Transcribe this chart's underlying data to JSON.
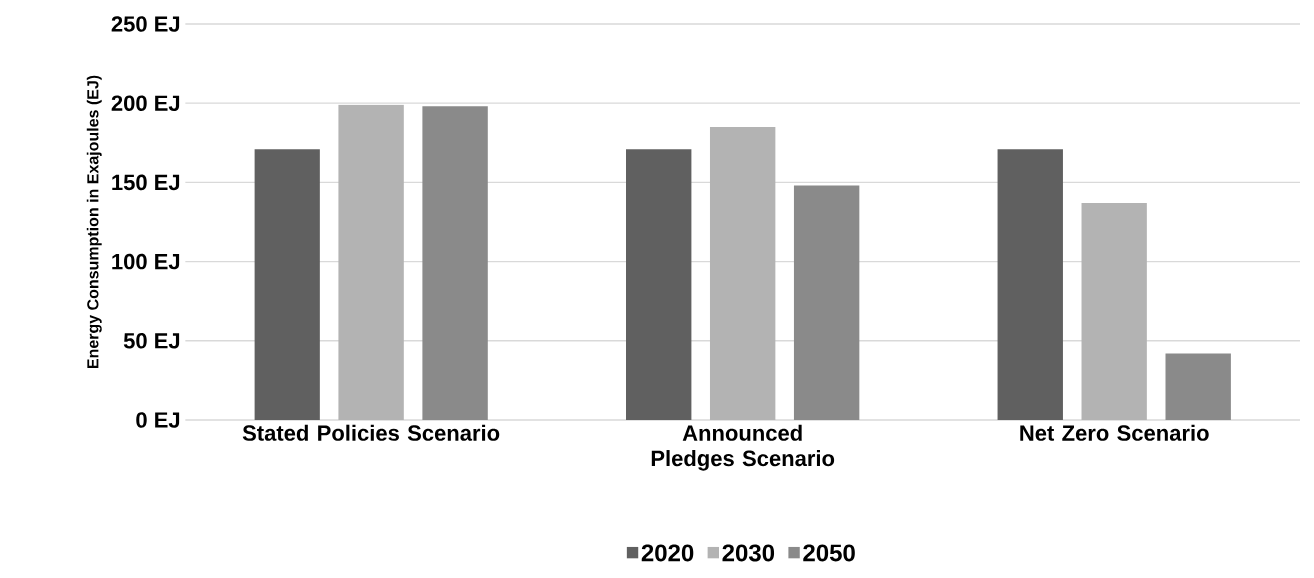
{
  "chart_data": {
    "type": "bar",
    "ylabel": "Energy Consumption in Exajoules (EJ)",
    "categories": [
      "Stated Policies Scenario",
      "Announced Pledges Scenario",
      "Net Zero Scenario"
    ],
    "series": [
      {
        "name": "2020",
        "color": "#606060",
        "values": [
          171,
          171,
          171
        ]
      },
      {
        "name": "2030",
        "color": "#b3b3b3",
        "values": [
          199,
          185,
          137
        ]
      },
      {
        "name": "2050",
        "color": "#8a8a8a",
        "values": [
          198,
          148,
          42
        ]
      }
    ],
    "ylim": [
      0,
      250
    ],
    "yticks": [
      {
        "value": 0,
        "label": "0 EJ"
      },
      {
        "value": 50,
        "label": "50 EJ"
      },
      {
        "value": 100,
        "label": "100 EJ"
      },
      {
        "value": 150,
        "label": "150 EJ"
      },
      {
        "value": 200,
        "label": "200 EJ"
      },
      {
        "value": 250,
        "label": "250 EJ"
      }
    ],
    "grid": "y",
    "legend": "bottom"
  }
}
